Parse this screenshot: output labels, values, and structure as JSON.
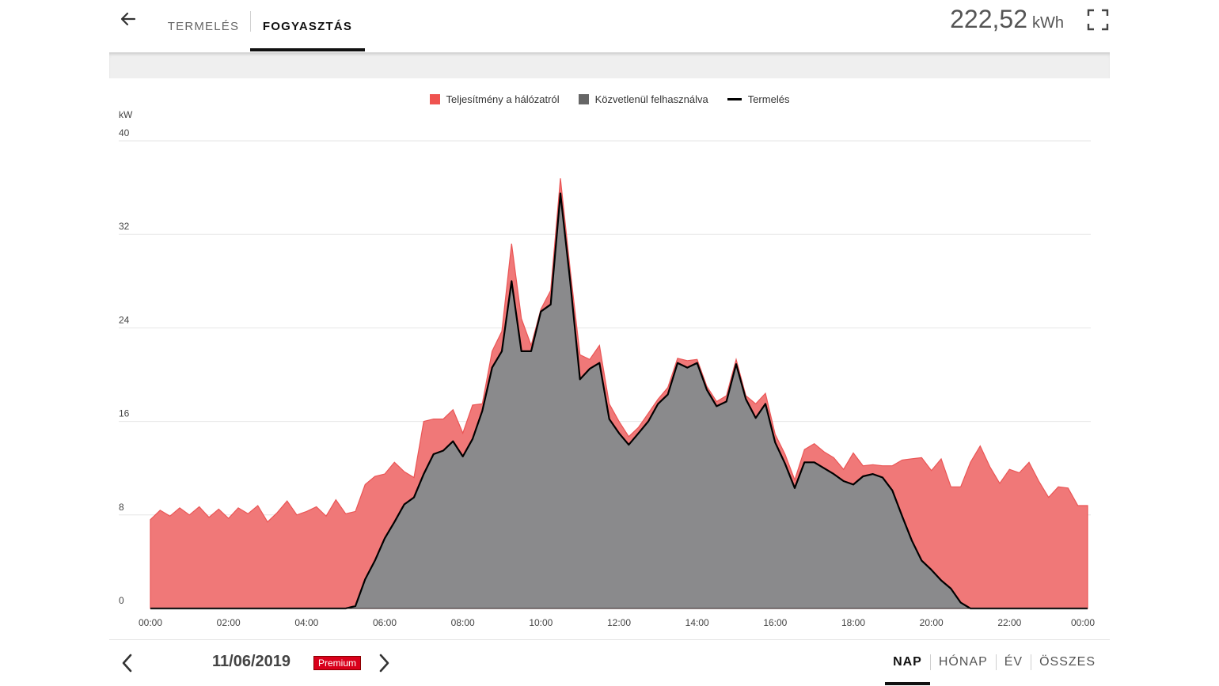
{
  "header": {
    "tabs": [
      {
        "label": "TERMELÉS",
        "active": false
      },
      {
        "label": "FOGYASZTÁS",
        "active": true
      }
    ],
    "total_value": "222,52",
    "total_unit": "kWh"
  },
  "icons": {
    "back": "arrow-left-icon",
    "fullscreen": "fullscreen-icon",
    "prev": "chevron-left-icon",
    "next": "chevron-right-icon"
  },
  "colors": {
    "grid_power": "#f07878",
    "grid_power_legend": "#ef5350",
    "direct_use": "#8a8a8c",
    "production_line": "#000000",
    "premium_badge": "#d9001b"
  },
  "footer": {
    "date": "11/06/2019",
    "badge": "Premium",
    "periods": [
      {
        "label": "NAP",
        "active": true
      },
      {
        "label": "HÓNAP",
        "active": false
      },
      {
        "label": "ÉV",
        "active": false
      },
      {
        "label": "ÖSSZES",
        "active": false
      }
    ]
  },
  "chart_data": {
    "type": "area",
    "title": "",
    "xlabel": "",
    "ylabel": "kW",
    "ylim": [
      0,
      40
    ],
    "yticks": [
      0,
      8,
      16,
      24,
      32,
      40
    ],
    "xtick_labels": [
      "00:00",
      "02:00",
      "04:00",
      "06:00",
      "08:00",
      "10:00",
      "12:00",
      "14:00",
      "16:00",
      "18:00",
      "20:00",
      "22:00",
      "00:00"
    ],
    "x_unit": "hour",
    "legend_position": "top-center",
    "grid": true,
    "series": [
      {
        "name": "Teljesítmény a hálózatról",
        "kind": "stacked-area-total",
        "points": [
          [
            0,
            7.6
          ],
          [
            0.25,
            8.4
          ],
          [
            0.5,
            7.9
          ],
          [
            0.75,
            8.6
          ],
          [
            1,
            8.0
          ],
          [
            1.25,
            8.7
          ],
          [
            1.5,
            7.8
          ],
          [
            1.75,
            8.5
          ],
          [
            2,
            7.7
          ],
          [
            2.25,
            8.6
          ],
          [
            2.5,
            8.1
          ],
          [
            2.75,
            8.8
          ],
          [
            3,
            7.4
          ],
          [
            3.25,
            8.2
          ],
          [
            3.5,
            9.2
          ],
          [
            3.75,
            8.0
          ],
          [
            4,
            8.3
          ],
          [
            4.25,
            8.7
          ],
          [
            4.5,
            7.9
          ],
          [
            4.75,
            9.3
          ],
          [
            5,
            8.1
          ],
          [
            5.25,
            8.3
          ],
          [
            5.5,
            10.6
          ],
          [
            5.75,
            11.3
          ],
          [
            6,
            11.5
          ],
          [
            6.25,
            12.5
          ],
          [
            6.5,
            11.7
          ],
          [
            6.75,
            11.2
          ],
          [
            7,
            16.0
          ],
          [
            7.25,
            16.2
          ],
          [
            7.5,
            16.2
          ],
          [
            7.75,
            17.0
          ],
          [
            8,
            15.0
          ],
          [
            8.25,
            17.4
          ],
          [
            8.5,
            17.5
          ],
          [
            8.75,
            22.0
          ],
          [
            9,
            23.7
          ],
          [
            9.25,
            31.2
          ],
          [
            9.5,
            24.8
          ],
          [
            9.75,
            22.5
          ],
          [
            10,
            25.6
          ],
          [
            10.25,
            27.2
          ],
          [
            10.5,
            36.8
          ],
          [
            10.75,
            29.0
          ],
          [
            11,
            21.7
          ],
          [
            11.25,
            21.3
          ],
          [
            11.5,
            22.5
          ],
          [
            11.75,
            17.5
          ],
          [
            12,
            16.0
          ],
          [
            12.25,
            14.7
          ],
          [
            12.5,
            15.5
          ],
          [
            12.75,
            16.7
          ],
          [
            13,
            17.9
          ],
          [
            13.25,
            18.9
          ],
          [
            13.5,
            21.4
          ],
          [
            13.75,
            21.2
          ],
          [
            14,
            21.3
          ],
          [
            14.25,
            19.0
          ],
          [
            14.5,
            17.7
          ],
          [
            14.75,
            18.2
          ],
          [
            15,
            21.3
          ],
          [
            15.25,
            18.2
          ],
          [
            15.5,
            17.5
          ],
          [
            15.75,
            18.4
          ],
          [
            16,
            14.9
          ],
          [
            16.25,
            13.2
          ],
          [
            16.5,
            11.0
          ],
          [
            16.75,
            13.6
          ],
          [
            17,
            14.1
          ],
          [
            17.25,
            13.4
          ],
          [
            17.5,
            12.9
          ],
          [
            17.75,
            11.9
          ],
          [
            18,
            13.3
          ],
          [
            18.25,
            12.2
          ],
          [
            18.5,
            12.3
          ],
          [
            18.75,
            12.2
          ],
          [
            19,
            12.2
          ],
          [
            19.25,
            12.7
          ],
          [
            19.5,
            12.8
          ],
          [
            19.75,
            12.9
          ],
          [
            20,
            11.8
          ],
          [
            20.25,
            12.8
          ],
          [
            20.5,
            10.4
          ],
          [
            20.75,
            10.4
          ],
          [
            21,
            12.5
          ],
          [
            21.25,
            13.9
          ],
          [
            21.5,
            12.1
          ],
          [
            21.75,
            10.7
          ],
          [
            22,
            11.9
          ],
          [
            22.25,
            11.6
          ],
          [
            22.5,
            12.5
          ],
          [
            22.75,
            10.9
          ],
          [
            23,
            9.5
          ],
          [
            23.25,
            10.4
          ],
          [
            23.5,
            10.3
          ],
          [
            23.75,
            8.8
          ],
          [
            24,
            8.8
          ]
        ]
      },
      {
        "name": "Közvetlenül felhasználva",
        "kind": "area",
        "points": [
          [
            0,
            0
          ],
          [
            5,
            0
          ],
          [
            5.25,
            0.2
          ],
          [
            5.5,
            2.5
          ],
          [
            5.75,
            4.1
          ],
          [
            6,
            6.0
          ],
          [
            6.25,
            7.4
          ],
          [
            6.5,
            8.9
          ],
          [
            6.75,
            9.5
          ],
          [
            7,
            11.5
          ],
          [
            7.25,
            13.2
          ],
          [
            7.5,
            13.5
          ],
          [
            7.75,
            14.3
          ],
          [
            8,
            13.0
          ],
          [
            8.25,
            14.5
          ],
          [
            8.5,
            16.9
          ],
          [
            8.75,
            20.6
          ],
          [
            9,
            22.0
          ],
          [
            9.25,
            28.0
          ],
          [
            9.5,
            22.0
          ],
          [
            9.75,
            22.0
          ],
          [
            10,
            25.4
          ],
          [
            10.25,
            26.0
          ],
          [
            10.5,
            35.5
          ],
          [
            10.75,
            28.0
          ],
          [
            11,
            19.6
          ],
          [
            11.25,
            20.5
          ],
          [
            11.5,
            21.0
          ],
          [
            11.75,
            16.2
          ],
          [
            12,
            15.0
          ],
          [
            12.25,
            14.0
          ],
          [
            12.5,
            15.0
          ],
          [
            12.75,
            16.0
          ],
          [
            13,
            17.5
          ],
          [
            13.25,
            18.3
          ],
          [
            13.5,
            21.0
          ],
          [
            13.75,
            20.6
          ],
          [
            14,
            21.0
          ],
          [
            14.25,
            18.7
          ],
          [
            14.5,
            17.3
          ],
          [
            14.75,
            17.7
          ],
          [
            15,
            20.9
          ],
          [
            15.25,
            17.9
          ],
          [
            15.5,
            16.3
          ],
          [
            15.75,
            17.5
          ],
          [
            16,
            14.2
          ],
          [
            16.25,
            12.4
          ],
          [
            16.5,
            10.3
          ],
          [
            16.75,
            12.5
          ],
          [
            17,
            12.5
          ],
          [
            17.25,
            12.0
          ],
          [
            17.5,
            11.5
          ],
          [
            17.75,
            10.9
          ],
          [
            18,
            10.6
          ],
          [
            18.25,
            11.3
          ],
          [
            18.5,
            11.5
          ],
          [
            18.75,
            11.2
          ],
          [
            19,
            10.1
          ],
          [
            19.25,
            7.9
          ],
          [
            19.5,
            5.8
          ],
          [
            19.75,
            4.1
          ],
          [
            20,
            3.3
          ],
          [
            20.25,
            2.4
          ],
          [
            20.5,
            1.7
          ],
          [
            20.75,
            0.5
          ],
          [
            21,
            0
          ],
          [
            24,
            0
          ]
        ]
      },
      {
        "name": "Termelés",
        "kind": "line",
        "same_as": "Közvetlenül felhasználva"
      }
    ]
  }
}
